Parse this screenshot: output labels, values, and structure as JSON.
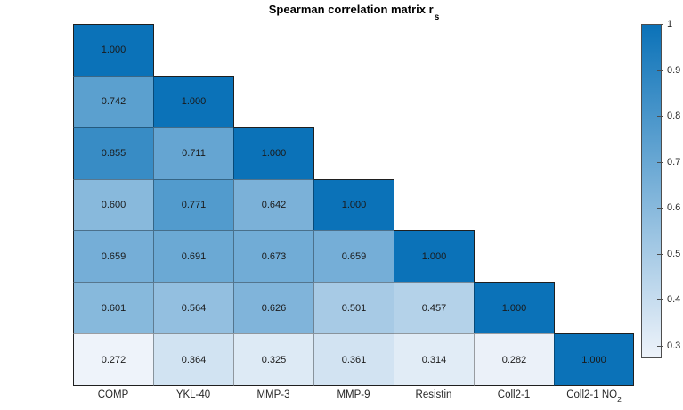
{
  "title": {
    "text": "Spearman correlation matrix r",
    "subscript": "s"
  },
  "chart_data": {
    "type": "heatmap",
    "title": "Spearman correlation matrix r_s",
    "shape": "lower-triangular",
    "categories": [
      {
        "text": "COMP",
        "sub": ""
      },
      {
        "text": "YKL-40",
        "sub": ""
      },
      {
        "text": "MMP-3",
        "sub": ""
      },
      {
        "text": "MMP-9",
        "sub": ""
      },
      {
        "text": "Resistin",
        "sub": ""
      },
      {
        "text": "Coll2-1",
        "sub": ""
      },
      {
        "text": "Coll2-1 NO",
        "sub": "2"
      }
    ],
    "matrix": [
      [
        1.0,
        null,
        null,
        null,
        null,
        null,
        null
      ],
      [
        0.742,
        1.0,
        null,
        null,
        null,
        null,
        null
      ],
      [
        0.855,
        0.711,
        1.0,
        null,
        null,
        null,
        null
      ],
      [
        0.6,
        0.771,
        0.642,
        1.0,
        null,
        null,
        null
      ],
      [
        0.659,
        0.691,
        0.673,
        0.659,
        1.0,
        null,
        null
      ],
      [
        0.601,
        0.564,
        0.626,
        0.501,
        0.457,
        1.0,
        null
      ],
      [
        0.272,
        0.364,
        0.325,
        0.361,
        0.314,
        0.282,
        1.0
      ]
    ],
    "value_decimals": 3,
    "colormap": {
      "min_color": "#eef3fa",
      "max_color": "#0b72b8",
      "vmin": 0.272,
      "vmax": 1.0
    },
    "colorbar": {
      "position": "right",
      "ticks": [
        {
          "label": "1",
          "value": 1.0
        },
        {
          "label": "0.9",
          "value": 0.9
        },
        {
          "label": "0.8",
          "value": 0.8
        },
        {
          "label": "0.7",
          "value": 0.7
        },
        {
          "label": "0.6",
          "value": 0.6
        },
        {
          "label": "0.5",
          "value": 0.5
        },
        {
          "label": "0.4",
          "value": 0.4
        },
        {
          "label": "0.3",
          "value": 0.3
        }
      ]
    },
    "grid": true,
    "legend": "none"
  }
}
